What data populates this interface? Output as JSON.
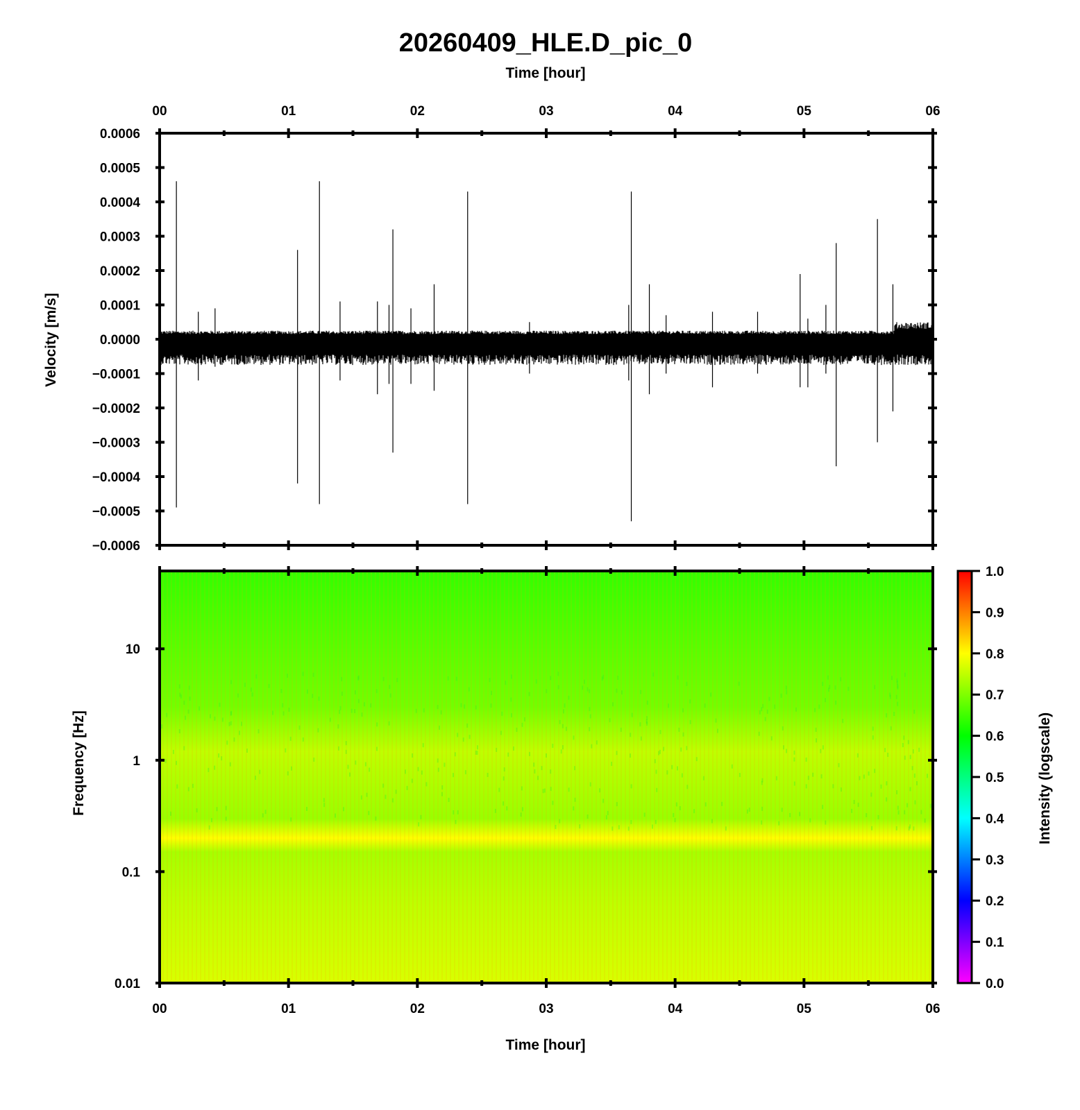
{
  "chart_data": [
    {
      "type": "line",
      "title": "20260409_HLE.D_pic_0",
      "xlabel_top": "Time [hour]",
      "xlabel": "Time [hour]",
      "ylabel": "Velocity [m/s]",
      "x_tick_labels": [
        "00",
        "01",
        "02",
        "03",
        "04",
        "05",
        "06"
      ],
      "y_tick_labels": [
        "0.0006",
        "0.0005",
        "0.0004",
        "0.0003",
        "0.0002",
        "0.0001",
        "0.0000",
        "−0.0001",
        "−0.0002",
        "−0.0003",
        "−0.0004",
        "−0.0005",
        "−0.0006"
      ],
      "xlim": [
        0,
        6
      ],
      "ylim": [
        -0.0006,
        0.0006
      ],
      "noise_band": {
        "upper": 2e-05,
        "lower": -6e-05,
        "late_upper": 4e-05,
        "late_start_hour": 5.7
      },
      "spikes": [
        {
          "hour": 0.13,
          "max": 0.00046,
          "min": -0.00049
        },
        {
          "hour": 0.3,
          "max": 8e-05,
          "min": -0.00012
        },
        {
          "hour": 0.43,
          "max": 9e-05,
          "min": -8e-05
        },
        {
          "hour": 1.07,
          "max": 0.00026,
          "min": -0.00042
        },
        {
          "hour": 1.24,
          "max": 0.00046,
          "min": -0.00048
        },
        {
          "hour": 1.4,
          "max": 0.00011,
          "min": -0.00012
        },
        {
          "hour": 1.69,
          "max": 0.00011,
          "min": -0.00016
        },
        {
          "hour": 1.78,
          "max": 0.0001,
          "min": -0.00013
        },
        {
          "hour": 1.81,
          "max": 0.00032,
          "min": -0.00033
        },
        {
          "hour": 1.95,
          "max": 9e-05,
          "min": -0.00013
        },
        {
          "hour": 2.13,
          "max": 0.00016,
          "min": -0.00015
        },
        {
          "hour": 2.39,
          "max": 0.00043,
          "min": -0.00048
        },
        {
          "hour": 2.87,
          "max": 5e-05,
          "min": -0.0001
        },
        {
          "hour": 3.64,
          "max": 0.0001,
          "min": -0.00012
        },
        {
          "hour": 3.66,
          "max": 0.00043,
          "min": -0.00053
        },
        {
          "hour": 3.8,
          "max": 0.00016,
          "min": -0.00016
        },
        {
          "hour": 3.93,
          "max": 7e-05,
          "min": -0.0001
        },
        {
          "hour": 4.29,
          "max": 8e-05,
          "min": -0.00014
        },
        {
          "hour": 4.64,
          "max": 8e-05,
          "min": -0.0001
        },
        {
          "hour": 4.97,
          "max": 0.00019,
          "min": -0.00014
        },
        {
          "hour": 5.03,
          "max": 6e-05,
          "min": -0.00014
        },
        {
          "hour": 5.17,
          "max": 0.0001,
          "min": -0.0001
        },
        {
          "hour": 5.25,
          "max": 0.00028,
          "min": -0.00037
        },
        {
          "hour": 5.57,
          "max": 0.00035,
          "min": -0.0003
        },
        {
          "hour": 5.69,
          "max": 0.00016,
          "min": -0.00021
        }
      ]
    },
    {
      "type": "heatmap",
      "xlabel": "Time [hour]",
      "ylabel": "Frequency [Hz]",
      "x_tick_labels": [
        "00",
        "01",
        "02",
        "03",
        "04",
        "05",
        "06"
      ],
      "y_scale": "log",
      "ylim": [
        0.01,
        50
      ],
      "y_tick_labels": [
        "0.01",
        "0.1",
        "1",
        "10"
      ],
      "y_tick_values": [
        0.01,
        0.1,
        1,
        10
      ],
      "colorbar": {
        "label": "Intensity (logscale)",
        "range": [
          0,
          1
        ],
        "tick_labels": [
          "1.0",
          "0.9",
          "0.8",
          "0.7",
          "0.6",
          "0.5",
          "0.4",
          "0.3",
          "0.2",
          "0.1",
          "0.0"
        ],
        "colormap": [
          "#ff00ff",
          "#0000ff",
          "#00ffff",
          "#00ff00",
          "#ffff00",
          "#ff0000"
        ]
      },
      "intensity_profile": [
        {
          "freq_hz": 0.01,
          "intensity": 0.77
        },
        {
          "freq_hz": 0.05,
          "intensity": 0.75
        },
        {
          "freq_hz": 0.15,
          "intensity": 0.73
        },
        {
          "freq_hz": 0.2,
          "intensity": 0.8
        },
        {
          "freq_hz": 0.3,
          "intensity": 0.72
        },
        {
          "freq_hz": 1.2,
          "intensity": 0.75
        },
        {
          "freq_hz": 3,
          "intensity": 0.69
        },
        {
          "freq_hz": 10,
          "intensity": 0.67
        },
        {
          "freq_hz": 50,
          "intensity": 0.64
        }
      ]
    }
  ]
}
